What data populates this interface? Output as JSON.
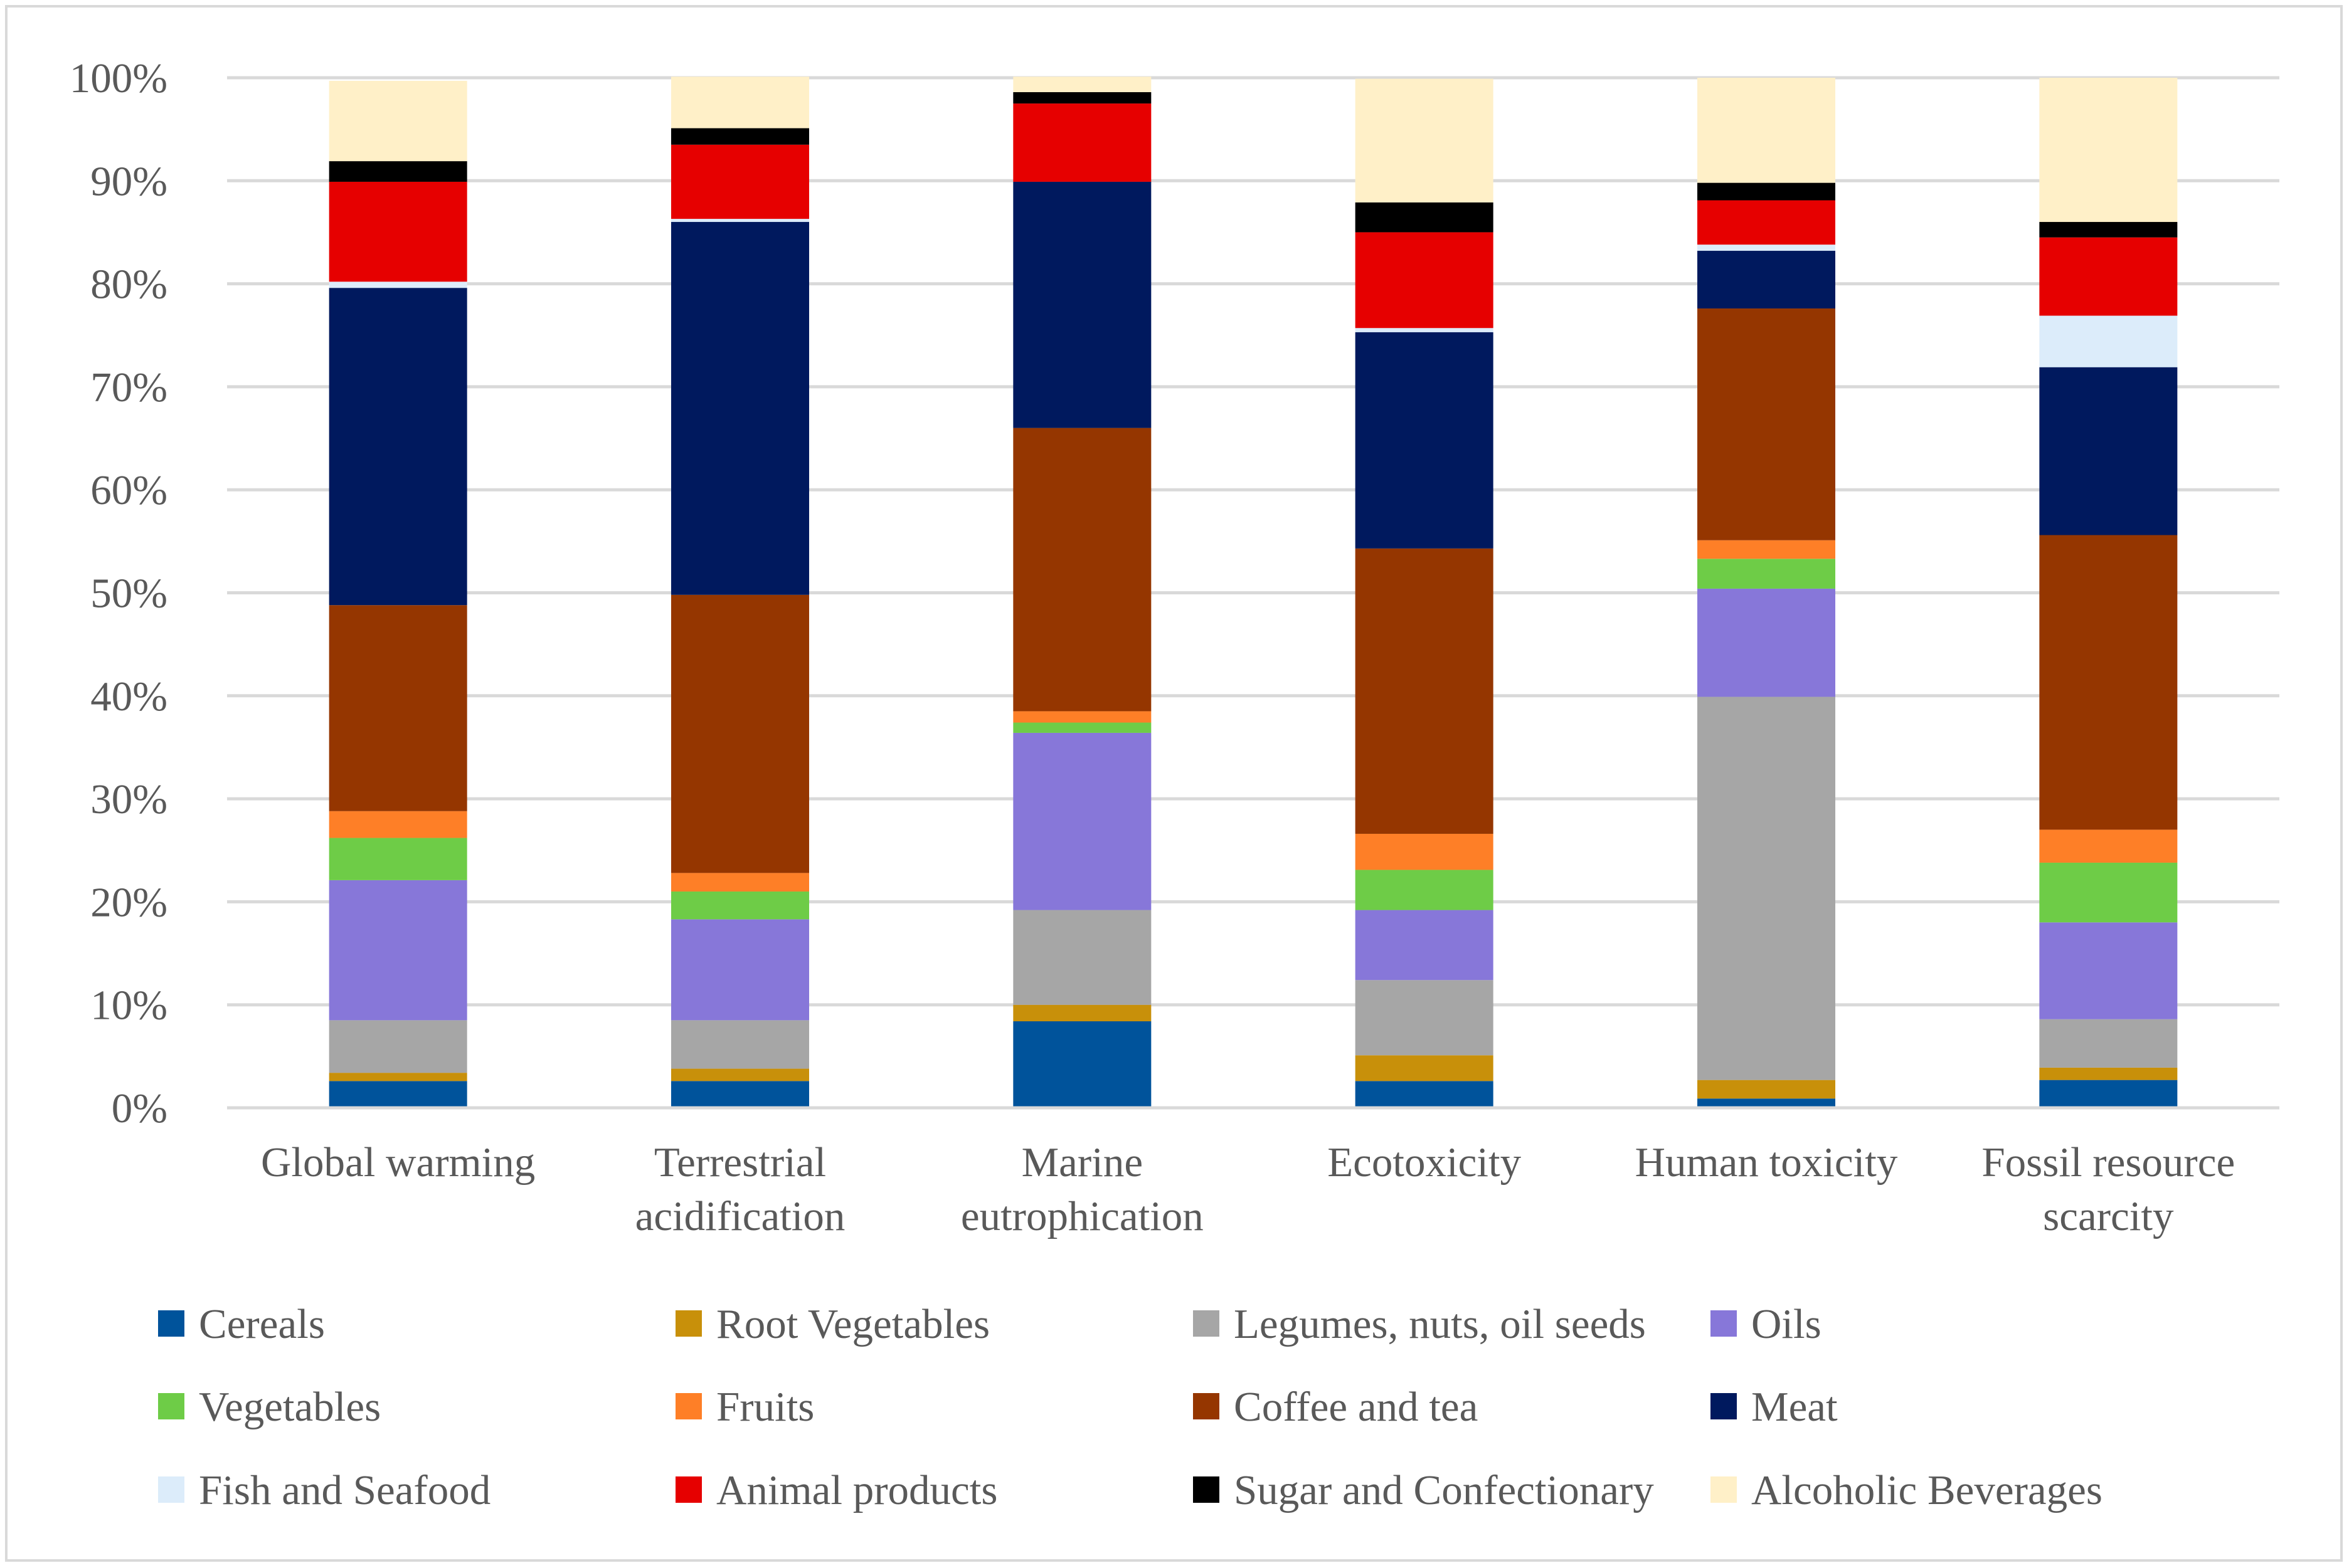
{
  "chart_data": {
    "type": "bar",
    "stacked": true,
    "normalized": true,
    "title": "",
    "xlabel": "",
    "ylabel": "",
    "ylim": [
      0,
      100
    ],
    "yticks": [
      "0%",
      "10%",
      "20%",
      "30%",
      "40%",
      "50%",
      "60%",
      "70%",
      "80%",
      "90%",
      "100%"
    ],
    "gridlines": true,
    "legend_position": "bottom",
    "categories": [
      [
        "Global warming"
      ],
      [
        "Terrestrial",
        "acidification"
      ],
      [
        "Marine",
        "eutrophication"
      ],
      [
        "Ecotoxicity"
      ],
      [
        "Human toxicity"
      ],
      [
        "Fossil resource",
        "scarcity"
      ]
    ],
    "series": [
      {
        "name": "Cereals",
        "color": "#00539b",
        "values": [
          2.6,
          2.6,
          8.4,
          2.6,
          0.9,
          2.7
        ]
      },
      {
        "name": "Root Vegetables",
        "color": "#c8900a",
        "values": [
          0.8,
          1.2,
          1.6,
          2.5,
          1.8,
          1.2
        ]
      },
      {
        "name": "Legumes, nuts, oil seeds",
        "color": "#a6a6a6",
        "values": [
          5.1,
          4.7,
          9.2,
          7.3,
          37.2,
          4.7
        ]
      },
      {
        "name": "Oils",
        "color": "#8777d9",
        "values": [
          13.6,
          9.8,
          17.2,
          6.8,
          10.5,
          9.4
        ]
      },
      {
        "name": "Vegetables",
        "color": "#6ecc47",
        "values": [
          4.1,
          2.7,
          1.0,
          3.9,
          2.9,
          5.8
        ]
      },
      {
        "name": "Fruits",
        "color": "#fe7f27",
        "values": [
          2.6,
          1.8,
          1.1,
          3.5,
          1.8,
          3.2
        ]
      },
      {
        "name": "Coffee and tea",
        "color": "#953600",
        "values": [
          20.0,
          27.0,
          27.5,
          27.7,
          22.5,
          28.6
        ]
      },
      {
        "name": "Meat",
        "color": "#00195e",
        "values": [
          30.8,
          36.2,
          23.9,
          21.0,
          5.6,
          16.3
        ]
      },
      {
        "name": "Fish and Seafood",
        "color": "#dcecfa",
        "values": [
          0.6,
          0.3,
          0.0,
          0.4,
          0.6,
          5.0
        ]
      },
      {
        "name": "Animal products",
        "color": "#e60000",
        "values": [
          9.7,
          7.2,
          7.6,
          9.3,
          4.3,
          7.6
        ]
      },
      {
        "name": "Sugar and Confectionary",
        "color": "#000000",
        "values": [
          2.0,
          1.6,
          1.1,
          2.9,
          1.7,
          1.5
        ]
      },
      {
        "name": "Alcoholic Beverages",
        "color": "#fff0c8",
        "values": [
          7.8,
          5.0,
          1.5,
          12.0,
          10.2,
          14.0
        ]
      }
    ]
  }
}
